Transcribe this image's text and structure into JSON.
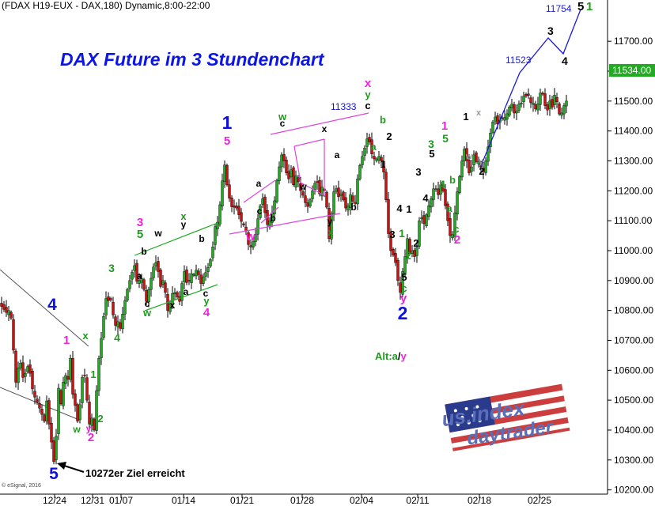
{
  "header": {
    "instrument_line": "(FDAX H19-EUX - DAX,180) Dynamic,8:00-22:00"
  },
  "title": "DAX Future im 3 Stundenchart",
  "price_tag": "11534.00",
  "copyright": "© eSignal, 2016",
  "logo": {
    "line1": "us.index",
    "line2": "daytrader"
  },
  "colors": {
    "title": "#0b16e6",
    "up_candle": "#22aa22",
    "down_candle": "#cc1111",
    "wave_blue": "#1010dd",
    "wave_magenta": "#ee22dd",
    "wave_green": "#1e9a1e",
    "wave_black": "#000000",
    "wave_gray": "#999999",
    "channel_magenta": "#dd44dd",
    "channel_green": "#22aa22",
    "trend_black": "#555555",
    "projection_blue": "#1a1ad8"
  },
  "chart_data": {
    "type": "candlestick",
    "title": "DAX Future im 3 Stundenchart",
    "xlabel": "",
    "ylabel": "",
    "ylim": [
      10180,
      11830
    ],
    "x_tick_labels": [
      "12/24",
      "12/31",
      "01/07",
      "01/14",
      "01/21",
      "01/28",
      "02/04",
      "02/11",
      "02/18",
      "02/25"
    ],
    "y_tick_labels": [
      "11700.00",
      "11600.00",
      "11500.00",
      "11400.00",
      "11300.00",
      "11200.00",
      "11100.00",
      "11000.00",
      "10900.00",
      "10800.00",
      "10700.00",
      "10600.00",
      "10500.00",
      "10400.00",
      "10300.00",
      "10200.00"
    ],
    "y_ticks": [
      11700,
      11600,
      11500,
      11400,
      11300,
      11200,
      11100,
      11000,
      10900,
      10800,
      10700,
      10600,
      10500,
      10400,
      10300,
      10200
    ],
    "last_price": 11534,
    "path_closes": [
      [
        0,
        10820
      ],
      [
        9,
        10790
      ],
      [
        13,
        10810
      ],
      [
        20,
        10560
      ],
      [
        25,
        10640
      ],
      [
        30,
        10560
      ],
      [
        34,
        10620
      ],
      [
        38,
        10590
      ],
      [
        42,
        10520
      ],
      [
        46,
        10500
      ],
      [
        52,
        10460
      ],
      [
        56,
        10430
      ],
      [
        60,
        10520
      ],
      [
        62,
        10420
      ],
      [
        66,
        10340
      ],
      [
        69,
        10272
      ],
      [
        71,
        10380
      ],
      [
        74,
        10540
      ],
      [
        78,
        10470
      ],
      [
        80,
        10560
      ],
      [
        84,
        10590
      ],
      [
        86,
        10570
      ],
      [
        89,
        10640
      ],
      [
        92,
        10520
      ],
      [
        96,
        10470
      ],
      [
        99,
        10410
      ],
      [
        103,
        10560
      ],
      [
        106,
        10610
      ],
      [
        110,
        10500
      ],
      [
        113,
        10420
      ],
      [
        116,
        10440
      ],
      [
        119,
        10400
      ],
      [
        124,
        10620
      ],
      [
        127,
        10680
      ],
      [
        130,
        10760
      ],
      [
        134,
        10840
      ],
      [
        138,
        10830
      ],
      [
        142,
        10840
      ],
      [
        144,
        10730
      ],
      [
        148,
        10770
      ],
      [
        152,
        10740
      ],
      [
        157,
        10820
      ],
      [
        161,
        10870
      ],
      [
        166,
        10920
      ],
      [
        170,
        10950
      ],
      [
        174,
        10880
      ],
      [
        178,
        10920
      ],
      [
        182,
        10870
      ],
      [
        185,
        10830
      ],
      [
        188,
        10870
      ],
      [
        192,
        10920
      ],
      [
        196,
        10970
      ],
      [
        200,
        10930
      ],
      [
        203,
        10880
      ],
      [
        206,
        10900
      ],
      [
        209,
        10860
      ],
      [
        212,
        10800
      ],
      [
        216,
        10830
      ],
      [
        219,
        10870
      ],
      [
        223,
        10850
      ],
      [
        227,
        10830
      ],
      [
        231,
        10910
      ],
      [
        234,
        10940
      ],
      [
        237,
        10870
      ],
      [
        241,
        10930
      ],
      [
        244,
        10910
      ],
      [
        247,
        10940
      ],
      [
        251,
        10920
      ],
      [
        254,
        10890
      ],
      [
        258,
        10920
      ],
      [
        261,
        10930
      ],
      [
        264,
        10950
      ],
      [
        268,
        10990
      ],
      [
        272,
        11080
      ],
      [
        276,
        11100
      ],
      [
        279,
        11180
      ],
      [
        282,
        11260
      ],
      [
        285,
        11300
      ],
      [
        287,
        11220
      ],
      [
        291,
        11160
      ],
      [
        294,
        11140
      ],
      [
        298,
        11150
      ],
      [
        302,
        11120
      ],
      [
        306,
        11090
      ],
      [
        310,
        11080
      ],
      [
        314,
        11020
      ],
      [
        318,
        11010
      ],
      [
        321,
        11040
      ],
      [
        324,
        11060
      ],
      [
        327,
        11130
      ],
      [
        330,
        11160
      ],
      [
        333,
        11180
      ],
      [
        336,
        11100
      ],
      [
        339,
        11080
      ],
      [
        343,
        11120
      ],
      [
        346,
        11140
      ],
      [
        349,
        11220
      ],
      [
        353,
        11280
      ],
      [
        356,
        11320
      ],
      [
        359,
        11300
      ],
      [
        362,
        11260
      ],
      [
        365,
        11240
      ],
      [
        368,
        11270
      ],
      [
        371,
        11220
      ],
      [
        374,
        11250
      ],
      [
        377,
        11230
      ],
      [
        380,
        11200
      ],
      [
        384,
        11180
      ],
      [
        388,
        11140
      ],
      [
        392,
        11170
      ],
      [
        396,
        11210
      ],
      [
        400,
        11240
      ],
      [
        404,
        11190
      ],
      [
        408,
        11220
      ],
      [
        412,
        11180
      ],
      [
        416,
        11040
      ],
      [
        420,
        11150
      ],
      [
        423,
        11220
      ],
      [
        426,
        11200
      ],
      [
        429,
        11170
      ],
      [
        432,
        11200
      ],
      [
        436,
        11140
      ],
      [
        440,
        11150
      ],
      [
        444,
        11200
      ],
      [
        448,
        11130
      ],
      [
        452,
        11240
      ],
      [
        456,
        11300
      ],
      [
        460,
        11330
      ],
      [
        463,
        11370
      ],
      [
        466,
        11380
      ],
      [
        469,
        11330
      ],
      [
        472,
        11310
      ],
      [
        475,
        11300
      ],
      [
        478,
        11320
      ],
      [
        482,
        11300
      ],
      [
        486,
        11250
      ],
      [
        489,
        11130
      ],
      [
        492,
        11020
      ],
      [
        495,
        10990
      ],
      [
        499,
        10980
      ],
      [
        503,
        10900
      ],
      [
        506,
        10860
      ],
      [
        509,
        10930
      ],
      [
        512,
        10980
      ],
      [
        515,
        11040
      ],
      [
        518,
        10990
      ],
      [
        521,
        11000
      ],
      [
        524,
        10980
      ],
      [
        527,
        11010
      ],
      [
        530,
        11100
      ],
      [
        533,
        11110
      ],
      [
        536,
        11090
      ],
      [
        539,
        11120
      ],
      [
        543,
        11160
      ],
      [
        546,
        11180
      ],
      [
        549,
        11220
      ],
      [
        552,
        11200
      ],
      [
        555,
        11180
      ],
      [
        558,
        11240
      ],
      [
        561,
        11180
      ],
      [
        565,
        11120
      ],
      [
        568,
        11060
      ],
      [
        571,
        11030
      ],
      [
        574,
        11100
      ],
      [
        577,
        11180
      ],
      [
        580,
        11230
      ],
      [
        584,
        11300
      ],
      [
        587,
        11340
      ],
      [
        590,
        11300
      ],
      [
        593,
        11260
      ],
      [
        596,
        11280
      ],
      [
        599,
        11320
      ],
      [
        603,
        11290
      ],
      [
        606,
        11300
      ],
      [
        609,
        11270
      ],
      [
        612,
        11260
      ],
      [
        615,
        11320
      ],
      [
        618,
        11360
      ],
      [
        621,
        11410
      ],
      [
        624,
        11440
      ],
      [
        627,
        11450
      ],
      [
        630,
        11410
      ],
      [
        633,
        11450
      ],
      [
        636,
        11440
      ],
      [
        640,
        11450
      ],
      [
        644,
        11480
      ],
      [
        647,
        11490
      ],
      [
        650,
        11460
      ],
      [
        654,
        11470
      ],
      [
        657,
        11500
      ],
      [
        660,
        11490
      ],
      [
        663,
        11530
      ],
      [
        666,
        11510
      ],
      [
        669,
        11523
      ],
      [
        672,
        11480
      ],
      [
        675,
        11500
      ],
      [
        678,
        11460
      ],
      [
        682,
        11520
      ],
      [
        685,
        11540
      ],
      [
        688,
        11490
      ],
      [
        692,
        11470
      ],
      [
        695,
        11500
      ],
      [
        698,
        11480
      ],
      [
        701,
        11520
      ],
      [
        705,
        11490
      ],
      [
        708,
        11440
      ],
      [
        712,
        11480
      ],
      [
        716,
        11500
      ],
      [
        719,
        11534
      ]
    ]
  },
  "projection": {
    "label_11523": "11523",
    "label_11754": "11754",
    "wave3": "3",
    "wave4": "4",
    "wave5": "5"
  },
  "labels": [
    {
      "t": "4",
      "c": "wave_blue",
      "x": 66,
      "y": 392,
      "s": 21
    },
    {
      "t": "5",
      "c": "wave_blue",
      "x": 68,
      "y": 606,
      "s": 21
    },
    {
      "t": "1",
      "c": "wave_blue",
      "x": 287,
      "y": 163,
      "s": 23
    },
    {
      "t": "2",
      "c": "wave_blue",
      "x": 509,
      "y": 404,
      "s": 23
    },
    {
      "t": "1",
      "c": "wave_magenta",
      "x": 84,
      "y": 435,
      "s": 15
    },
    {
      "t": "2",
      "c": "wave_magenta",
      "x": 115,
      "y": 558,
      "s": 15
    },
    {
      "t": "y",
      "c": "wave_magenta",
      "x": 112,
      "y": 546,
      "s": 12
    },
    {
      "t": "3",
      "c": "wave_magenta",
      "x": 177,
      "y": 286,
      "s": 15
    },
    {
      "t": "4",
      "c": "wave_magenta",
      "x": 261,
      "y": 400,
      "s": 15
    },
    {
      "t": "5",
      "c": "wave_magenta",
      "x": 287,
      "y": 183,
      "s": 15
    },
    {
      "t": "w",
      "c": "wave_magenta",
      "x": 317,
      "y": 304,
      "s": 15
    },
    {
      "t": "x",
      "c": "wave_magenta",
      "x": 465,
      "y": 110,
      "s": 15
    },
    {
      "t": "1",
      "c": "wave_magenta",
      "x": 562,
      "y": 164,
      "s": 15
    },
    {
      "t": "2",
      "c": "wave_magenta",
      "x": 578,
      "y": 308,
      "s": 15
    },
    {
      "t": "y",
      "c": "wave_magenta",
      "x": 510,
      "y": 382,
      "s": 15
    },
    {
      "t": "x",
      "c": "wave_green",
      "x": 108,
      "y": 429,
      "s": 13
    },
    {
      "t": "4",
      "c": "wave_green",
      "x": 148,
      "y": 432,
      "s": 14
    },
    {
      "t": "3",
      "c": "wave_green",
      "x": 141,
      "y": 344,
      "s": 14
    },
    {
      "t": "1",
      "c": "wave_green",
      "x": 118,
      "y": 478,
      "s": 13
    },
    {
      "t": "2",
      "c": "wave_green",
      "x": 127,
      "y": 534,
      "s": 13
    },
    {
      "t": "w",
      "c": "wave_green",
      "x": 97,
      "y": 547,
      "s": 12
    },
    {
      "t": "5",
      "c": "wave_green",
      "x": 177,
      "y": 301,
      "s": 15
    },
    {
      "t": "x",
      "c": "wave_green",
      "x": 232,
      "y": 278,
      "s": 13
    },
    {
      "t": "w",
      "c": "wave_green",
      "x": 186,
      "y": 400,
      "s": 13
    },
    {
      "t": "y",
      "c": "wave_green",
      "x": 261,
      "y": 385,
      "s": 13
    },
    {
      "t": "w",
      "c": "wave_green",
      "x": 357,
      "y": 152,
      "s": 13
    },
    {
      "t": "x",
      "c": "wave_green",
      "x": 418,
      "y": 298,
      "s": 13
    },
    {
      "t": "y",
      "c": "wave_green",
      "x": 465,
      "y": 124,
      "s": 13
    },
    {
      "t": "a",
      "c": "wave_green",
      "x": 472,
      "y": 190,
      "s": 13
    },
    {
      "t": "b",
      "c": "wave_green",
      "x": 484,
      "y": 156,
      "s": 13
    },
    {
      "t": "3",
      "c": "wave_green",
      "x": 545,
      "y": 187,
      "s": 14
    },
    {
      "t": "5",
      "c": "wave_green",
      "x": 563,
      "y": 180,
      "s": 14
    },
    {
      "t": "4",
      "c": "wave_green",
      "x": 559,
      "y": 238,
      "s": 14
    },
    {
      "t": "b",
      "c": "wave_green",
      "x": 572,
      "y": 232,
      "s": 13
    },
    {
      "t": "a",
      "c": "wave_green",
      "x": 568,
      "y": 268,
      "s": 13
    },
    {
      "t": "c",
      "c": "wave_green",
      "x": 577,
      "y": 294,
      "s": 13
    },
    {
      "t": "1",
      "c": "wave_green",
      "x": 508,
      "y": 300,
      "s": 14
    },
    {
      "t": "2",
      "c": "wave_green",
      "x": 516,
      "y": 328,
      "s": 14
    },
    {
      "t": "c",
      "c": "wave_green",
      "x": 511,
      "y": 369,
      "s": 13
    },
    {
      "t": "b",
      "c": "wave_black",
      "x": 255,
      "y": 306,
      "s": 12
    },
    {
      "t": "a",
      "c": "wave_black",
      "x": 176,
      "y": 353,
      "s": 12
    },
    {
      "t": "b",
      "c": "wave_black",
      "x": 182,
      "y": 322,
      "s": 12
    },
    {
      "t": "c",
      "c": "wave_black",
      "x": 186,
      "y": 388,
      "s": 12
    },
    {
      "t": "w",
      "c": "wave_black",
      "x": 200,
      "y": 299,
      "s": 12
    },
    {
      "t": "y",
      "c": "wave_black",
      "x": 232,
      "y": 288,
      "s": 12
    },
    {
      "t": "x",
      "c": "wave_black",
      "x": 218,
      "y": 390,
      "s": 12
    },
    {
      "t": "a",
      "c": "wave_black",
      "x": 235,
      "y": 373,
      "s": 12
    },
    {
      "t": "c",
      "c": "wave_black",
      "x": 260,
      "y": 375,
      "s": 12
    },
    {
      "t": "a",
      "c": "wave_black",
      "x": 327,
      "y": 236,
      "s": 12
    },
    {
      "t": "c",
      "c": "wave_black",
      "x": 328,
      "y": 271,
      "s": 12
    },
    {
      "t": "b",
      "c": "wave_black",
      "x": 345,
      "y": 280,
      "s": 12
    },
    {
      "t": "c",
      "c": "wave_black",
      "x": 357,
      "y": 160,
      "s": 12
    },
    {
      "t": "w",
      "c": "wave_black",
      "x": 383,
      "y": 240,
      "s": 12
    },
    {
      "t": "x",
      "c": "wave_black",
      "x": 410,
      "y": 167,
      "s": 12
    },
    {
      "t": "a",
      "c": "wave_black",
      "x": 426,
      "y": 200,
      "s": 12
    },
    {
      "t": "b",
      "c": "wave_black",
      "x": 447,
      "y": 266,
      "s": 12
    },
    {
      "t": "y",
      "c": "wave_black",
      "x": 417,
      "y": 284,
      "s": 12
    },
    {
      "t": "c",
      "c": "wave_black",
      "x": 465,
      "y": 138,
      "s": 13
    },
    {
      "t": "2",
      "c": "wave_black",
      "x": 492,
      "y": 177,
      "s": 13
    },
    {
      "t": "1",
      "c": "wave_black",
      "x": 484,
      "y": 212,
      "s": 13
    },
    {
      "t": "4",
      "c": "wave_black",
      "x": 505,
      "y": 268,
      "s": 13
    },
    {
      "t": "3",
      "c": "wave_black",
      "x": 496,
      "y": 301,
      "s": 13
    },
    {
      "t": "1",
      "c": "wave_black",
      "x": 517,
      "y": 269,
      "s": 13
    },
    {
      "t": "2",
      "c": "wave_black",
      "x": 526,
      "y": 312,
      "s": 13
    },
    {
      "t": "5",
      "c": "wave_black",
      "x": 511,
      "y": 355,
      "s": 13
    },
    {
      "t": "3",
      "c": "wave_black",
      "x": 529,
      "y": 222,
      "s": 13
    },
    {
      "t": "4",
      "c": "wave_black",
      "x": 538,
      "y": 255,
      "s": 13
    },
    {
      "t": "5",
      "c": "wave_black",
      "x": 546,
      "y": 199,
      "s": 13
    },
    {
      "t": "1",
      "c": "wave_black",
      "x": 589,
      "y": 152,
      "s": 13
    },
    {
      "t": "2",
      "c": "wave_black",
      "x": 609,
      "y": 221,
      "s": 13
    },
    {
      "t": "x",
      "c": "wave_gray",
      "x": 605,
      "y": 146,
      "s": 11
    },
    {
      "t": "w",
      "c": "wave_gray",
      "x": 593,
      "y": 201,
      "s": 11
    },
    {
      "t": "y",
      "c": "wave_gray",
      "x": 608,
      "y": 207,
      "s": 11
    }
  ],
  "annotations": {
    "label_11333": "11333",
    "alt_prefix": "Alt:a",
    "alt_sep": "/",
    "alt_y": "y",
    "arrow_text": "10272er Ziel erreicht"
  }
}
